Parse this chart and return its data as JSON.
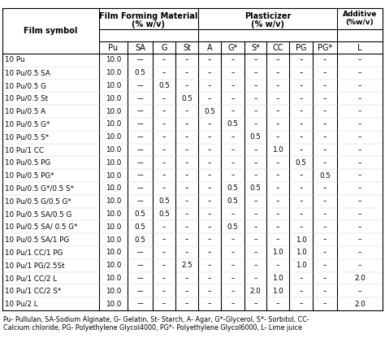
{
  "col_header1": "Film symbol",
  "header_ffm": "Film Forming Material\n(% w/v)",
  "header_plas": "Plasticizer\n(% w/v)",
  "header_add": "Additive\n(%w/v)",
  "sub_headers": [
    "Pu",
    "SA",
    "G",
    "St",
    "A",
    "G*",
    "S*",
    "CC",
    "PG",
    "PG*",
    "L"
  ],
  "dash": "–",
  "double_dash": "––",
  "rows": [
    [
      "10 Pu",
      "10.0",
      "––",
      "–",
      "–",
      "–",
      "–",
      "–",
      "–",
      "–",
      "–",
      "–"
    ],
    [
      "10 Pu/0.5 SA",
      "10.0",
      "0.5",
      "–",
      "–",
      "–",
      "–",
      "–",
      "–",
      "–",
      "–",
      "–"
    ],
    [
      "10 Pu/0.5 G",
      "10.0",
      "––",
      "0.5",
      "–",
      "–",
      "–",
      "–",
      "–",
      "–",
      "–",
      "–"
    ],
    [
      "10 Pu/0.5 St",
      "10.0",
      "––",
      "–",
      "0.5",
      "–",
      "–",
      "–",
      "–",
      "–",
      "–",
      "–"
    ],
    [
      "10 Pu/0.5 A",
      "10.0",
      "––",
      "–",
      "–",
      "0.5",
      "–",
      "–",
      "–",
      "–",
      "–",
      "–"
    ],
    [
      "10 Pu/0.5 G*",
      "10.0",
      "––",
      "–",
      "–",
      "–",
      "0.5",
      "–",
      "–",
      "–",
      "–",
      "–"
    ],
    [
      "10 Pu/0.5 S*",
      "10.0",
      "––",
      "–",
      "–",
      "–",
      "–",
      "0.5",
      "–",
      "–",
      "–",
      "–"
    ],
    [
      "10 Pu/1 CC",
      "10.0",
      "––",
      "–",
      "–",
      "–",
      "–",
      "–",
      "1.0",
      "–",
      "–",
      "–"
    ],
    [
      "10 Pu/0.5 PG",
      "10.0",
      "––",
      "–",
      "–",
      "–",
      "–",
      "–",
      "–",
      "0.5",
      "–",
      "–"
    ],
    [
      "10 Pu/0.5 PG*",
      "10.0",
      "––",
      "–",
      "–",
      "–",
      "–",
      "–",
      "–",
      "–",
      "0.5",
      "–"
    ],
    [
      "10 Pu/0.5 G*/0.5 S*",
      "10.0",
      "––",
      "–",
      "–",
      "–",
      "0.5",
      "0.5",
      "–",
      "–",
      "–",
      "–"
    ],
    [
      "10 Pu/0.5 G/0.5 G*",
      "10.0",
      "––",
      "0.5",
      "–",
      "–",
      "0.5",
      "–",
      "–",
      "–",
      "–",
      "–"
    ],
    [
      "10 Pu/0.5 SA/0.5 G",
      "10.0",
      "0.5",
      "0.5",
      "–",
      "–",
      "–",
      "–",
      "–",
      "–",
      "–",
      "–"
    ],
    [
      "10 Pu/0.5 SA/ 0.5 G*",
      "10.0",
      "0.5",
      "–",
      "–",
      "–",
      "0.5",
      "–",
      "–",
      "–",
      "–",
      "–"
    ],
    [
      "10 Pu/0.5 SA/1 PG",
      "10.0",
      "0.5",
      "–",
      "–",
      "–",
      "–",
      "–",
      "–",
      "1.0",
      "–",
      "–"
    ],
    [
      "10 Pu/1 CC/1 PG",
      "10.0",
      "––",
      "–",
      "–",
      "–",
      "–",
      "–",
      "1.0",
      "1.0",
      "–",
      "–"
    ],
    [
      "10 Pu/1 PG/2.5St",
      "10.0",
      "––",
      "–",
      "2.5",
      "–",
      "–",
      "–",
      "–",
      "1.0",
      "–",
      "–"
    ],
    [
      "10 Pu/1 CC/2 L",
      "10.0",
      "––",
      "–",
      "–",
      "–",
      "–",
      "–",
      "1.0",
      "–",
      "–",
      "2.0"
    ],
    [
      "10 Pu/1 CC/2 S*",
      "10.0",
      "––",
      "–",
      "–",
      "–",
      "–",
      "2.0",
      "1.0",
      "–",
      "–",
      "–"
    ],
    [
      "10 Pu/2 L",
      "10.0",
      "––",
      "–",
      "–",
      "–",
      "–",
      "–",
      "–",
      "–",
      "–",
      "2.0"
    ]
  ],
  "footnote_line1": "Pu- Pullulan, SA-Sodium Alginate, G- Gelatin, St- Starch, A- Agar, G*-Glycerol, S*- Sorbitol, CC-",
  "footnote_line2": "Calcium chloride, PG- Polyethylene Glycol4000, PG*- Polyethylene Glycol6000, L- Lime juice",
  "bg_color": "#ffffff"
}
